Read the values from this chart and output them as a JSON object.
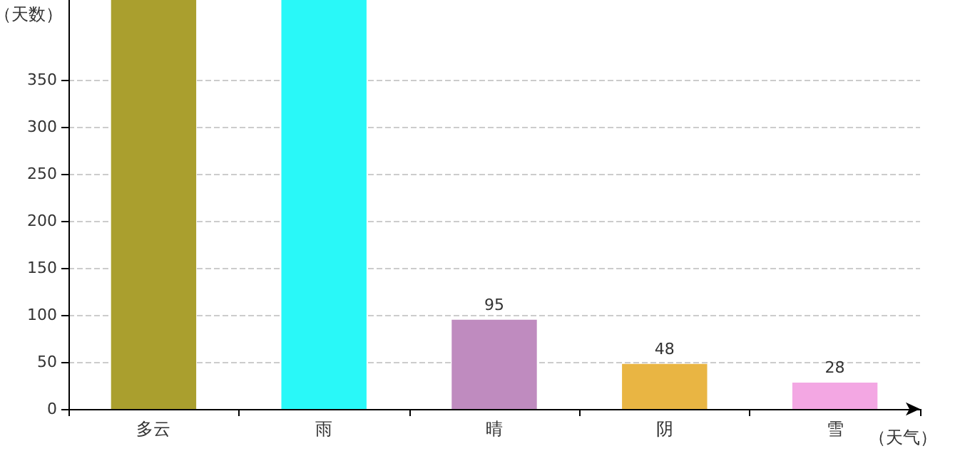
{
  "chart_data": {
    "type": "bar",
    "xlabel": "（天气）",
    "ylabel": "（天数）",
    "categories": [
      "多云",
      "雨",
      "晴",
      "阴",
      "雪"
    ],
    "values": [
      435,
      435,
      95,
      48,
      28
    ],
    "colors": [
      "#aa9f2e",
      "#29f8f8",
      "#bf8bbf",
      "#e9b543",
      "#f3a7e3"
    ],
    "value_labels": [
      null,
      null,
      "95",
      "48",
      "28"
    ],
    "ylim": [
      0,
      435
    ],
    "yticks": [
      0,
      50,
      100,
      150,
      200,
      250,
      300,
      350
    ],
    "grid": "y"
  }
}
